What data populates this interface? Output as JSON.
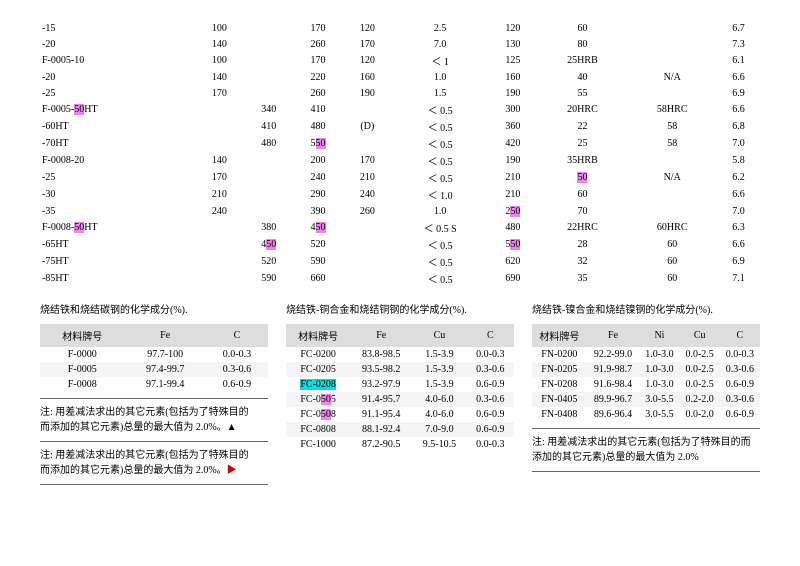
{
  "main": {
    "rows": [
      [
        "-15",
        "100",
        "",
        "170",
        "120",
        "2.5",
        "120",
        "60",
        "",
        "6.7"
      ],
      [
        "-20",
        "140",
        "",
        "260",
        "170",
        "7.0",
        "130",
        "80",
        "",
        "7.3"
      ],
      [
        "F-0005-10",
        "100",
        "",
        "170",
        "120",
        "＜ 1",
        "125",
        "25HRB",
        "",
        "6.1"
      ],
      [
        "-20",
        "140",
        "",
        "220",
        "160",
        "1.0",
        "160",
        "40",
        "N/A",
        "6.6"
      ],
      [
        "-25",
        "170",
        "",
        "260",
        "190",
        "1.5",
        "190",
        "55",
        "",
        "6.9"
      ],
      [
        "F-0005-|50|HT",
        "",
        "340",
        "410",
        "",
        "＜ 0.5",
        "300",
        "20HRC",
        "58HRC",
        "6.6"
      ],
      [
        "-60HT",
        "",
        "410",
        "480",
        "(D)",
        "＜ 0.5",
        "360",
        "22",
        "58",
        "6.8"
      ],
      [
        "-70HT",
        "",
        "480",
        "5|50|",
        "",
        "＜ 0.5",
        "420",
        "25",
        "58",
        "7.0"
      ],
      [
        "F-0008-20",
        "140",
        "",
        "200",
        "170",
        "＜ 0.5",
        "190",
        "35HRB",
        "",
        "5.8"
      ],
      [
        "-25",
        "170",
        "",
        "240",
        "210",
        "＜ 0.5",
        "210",
        "|50|",
        "N/A",
        "6.2"
      ],
      [
        "-30",
        "210",
        "",
        "290",
        "240",
        "＜ 1.0",
        "210",
        "60",
        "",
        "6.6"
      ],
      [
        "-35",
        "240",
        "",
        "390",
        "260",
        "1.0",
        "2|50|",
        "70",
        "",
        "7.0"
      ],
      [
        "F-0008-|50|HT",
        "",
        "380",
        "4|50|",
        "",
        "＜ 0.5 S",
        "480",
        "22HRC",
        "60HRC",
        "6.3"
      ],
      [
        "-65HT",
        "",
        "4|50|",
        "520",
        "",
        "＜ 0.5",
        "5|50|",
        "28",
        "60",
        "6.6"
      ],
      [
        "-75HT",
        "",
        "520",
        "590",
        "",
        "＜ 0.5",
        "620",
        "32",
        "60",
        "6.9"
      ],
      [
        "-85HT",
        "",
        "590",
        "660",
        "",
        "＜ 0.5",
        "690",
        "35",
        "60",
        "7.1"
      ]
    ]
  },
  "sections": [
    {
      "title": "烧结铁和烧结碳钢的化学成分(%).",
      "headers": [
        "材料牌号",
        "Fe",
        "C"
      ],
      "rows": [
        [
          "F-0000",
          "97.7-100",
          "0.0-0.3"
        ],
        [
          "F-0005",
          "97.4-99.7",
          "0.3-0.6"
        ],
        [
          "F-0008",
          "97.1-99.4",
          "0.6-0.9"
        ]
      ],
      "notes": [
        "注: 用差减法求出的其它元素(包括为了特殊目的　　而添加的其它元素)总量的最大值为 2.0%。▲",
        "注: 用差减法求出的其它元素(包括为了特殊目的　　而添加的其它元素)总量的最大值为 2.0%。▶"
      ]
    },
    {
      "title": "烧结铁-铜合金和烧结铜钢的化学成分(%).",
      "headers": [
        "材料牌号",
        "Fe",
        "Cu",
        "C"
      ],
      "rows": [
        [
          "FC-0200",
          "83.8-98.5",
          "1.5-3.9",
          "0.0-0.3"
        ],
        [
          "FC-0205",
          "93.5-98.2",
          "1.5-3.9",
          "0.3-0.6"
        ],
        [
          "|FC-0208|",
          "93.2-97.9",
          "1.5-3.9",
          "0.6-0.9"
        ],
        [
          "FC-0|50|5",
          "91.4-95.7",
          "4.0-6.0",
          "0.3-0.6"
        ],
        [
          "FC-0|50|8",
          "91.1-95.4",
          "4.0-6.0",
          "0.6-0.9"
        ],
        [
          "FC-0808",
          "88.1-92.4",
          "7.0-9.0",
          "0.6-0.9"
        ],
        [
          "FC-1000",
          "87.2-90.5",
          "9.5-10.5",
          "0.0-0.3"
        ]
      ]
    },
    {
      "title": "烧结铁-镍合金和烧结镍钢的化学成分(%).",
      "headers": [
        "材料牌号",
        "Fe",
        "Ni",
        "Cu",
        "C"
      ],
      "rows": [
        [
          "FN-0200",
          "92.2-99.0",
          "1.0-3.0",
          "0.0-2.5",
          "0.0-0.3"
        ],
        [
          "FN-0205",
          "91.9-98.7",
          "1.0-3.0",
          "0.0-2.5",
          "0.3-0.6"
        ],
        [
          "FN-0208",
          "91.6-98.4",
          "1.0-3.0",
          "0.0-2.5",
          "0.6-0.9"
        ],
        [
          "FN-0405",
          "89.9-96.7",
          "3.0-5.5",
          "0.2-2.0",
          "0.3-0.6"
        ],
        [
          "FN-0408",
          "89.6-96.4",
          "3.0-5.5",
          "0.0-2.0",
          "0.6-0.9"
        ]
      ],
      "notes": [
        "注: 用差减法求出的其它元素(包括为了特殊目的而添加的其它元素)总量的最大值为 2.0%"
      ]
    }
  ]
}
